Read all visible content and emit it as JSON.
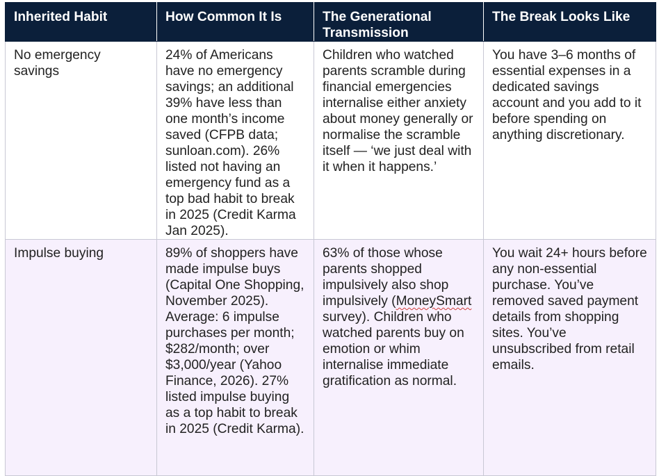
{
  "table": {
    "headers": [
      "Inherited Habit",
      "How Common It Is",
      "The Generational Transmission",
      "The Break Looks Like"
    ],
    "rows": [
      {
        "habit": "No emergency savings",
        "how_common": "24% of Americans have no emergency savings; an additional 39% have less than one month’s income saved (CFPB data; sunloan.com). 26% listed not having an emergency fund as a top bad habit to break in 2025 (Credit Karma Jan 2025).",
        "transmission": "Children who watched parents scramble during financial emergencies internalise either anxiety about money generally or normalise the scramble itself — ‘we just deal with it when it happens.’",
        "break": "You have 3–6 months of essential expenses in a dedicated savings account and you add to it before spending on anything discretionary."
      },
      {
        "habit": "Impulse buying",
        "how_common": "89% of shoppers have made impulse buys (Capital One Shopping, November 2025). Average: 6 impulse purchases per month; $282/month; over $3,000/year (Yahoo Finance, 2026). 27% listed impulse buying as a top habit to break in 2025 (Credit Karma).",
        "transmission_before": "63% of those whose parents shopped impulsively also shop impulsively (",
        "transmission_flagged": "MoneySmart",
        "transmission_after": " survey). Children who watched parents buy on emotion or whim internalise immediate gratification as normal.",
        "break": "You wait 24+ hours before any non-essential purchase. You’ve removed saved payment details from shopping sites. You’ve unsubscribed from retail emails."
      }
    ]
  }
}
